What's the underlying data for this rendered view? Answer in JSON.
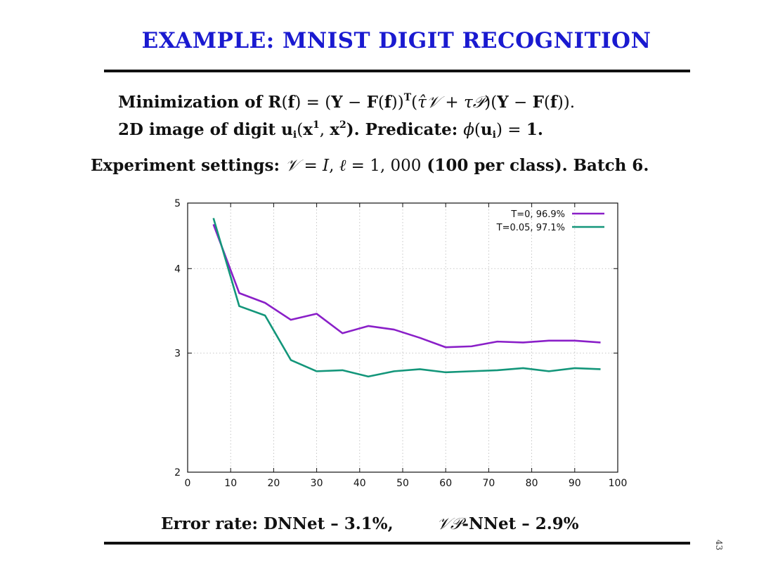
{
  "slide": {
    "title": "EXAMPLE: MNIST DIGIT RECOGNITION",
    "page_number": "43"
  },
  "text": {
    "line1_a": "Minimization of ",
    "line1_b": "R",
    "line1_c": "(",
    "line1_d": "f",
    "line1_e": ") = (",
    "line1_f": "Y",
    "line1_g": " − ",
    "line1_h": "F",
    "line1_i": "(",
    "line1_j": "f",
    "line1_k": "))",
    "line1_sup": "T",
    "line1_l": "(",
    "line1_m": "τ̂",
    "line1_n": "𝒱",
    "line1_o": " + ",
    "line1_p": "τ",
    "line1_q": "𝒫",
    "line1_r": ")(",
    "line1_s": "Y",
    "line1_t": " − ",
    "line1_u": "F",
    "line1_v": "(",
    "line1_w": "f",
    "line1_x": ")).",
    "line2_a": "2D image of digit ",
    "line2_b": "u",
    "line2_sub": "i",
    "line2_c": "(",
    "line2_d": "x",
    "line2_sup1": "1",
    "line2_e": ", ",
    "line2_f": "x",
    "line2_sup2": "2",
    "line2_g": ").  Predicate: ",
    "line2_h": "ϕ",
    "line2_i": "(",
    "line2_j": "u",
    "line2_sub2": "i",
    "line2_k": ") = ",
    "line2_l": "1.",
    "line3_a": "Experiment settings: ",
    "line3_b": "𝒱",
    "line3_c": " = ",
    "line3_d": "I",
    "line3_e": ", ",
    "line3_f": "ℓ",
    "line3_g": " = 1, 000",
    "line3_h": " (100 per class).  Batch 6.",
    "bottom_a": "Error rate:  DNNet – 3.1%,",
    "bottom_b": "𝒱𝒫",
    "bottom_c": "-NNet – 2.9%"
  },
  "chart_data": {
    "type": "line",
    "xlim": [
      0,
      100
    ],
    "ylim": [
      2,
      5
    ],
    "yscale": "log",
    "x_ticks": [
      0,
      10,
      20,
      30,
      40,
      50,
      60,
      70,
      80,
      90,
      100
    ],
    "y_ticks": [
      2,
      3,
      4,
      5
    ],
    "grid": true,
    "legend_position": "top-right",
    "series": [
      {
        "name": "T=0, 96.9%",
        "color": "#8a1fc8",
        "x": [
          6,
          12,
          18,
          24,
          30,
          36,
          42,
          48,
          54,
          60,
          66,
          72,
          78,
          84,
          90,
          96
        ],
        "y": [
          4.65,
          3.68,
          3.56,
          3.36,
          3.43,
          3.21,
          3.29,
          3.25,
          3.16,
          3.06,
          3.07,
          3.12,
          3.11,
          3.13,
          3.13,
          3.11
        ]
      },
      {
        "name": "T=0.05, 97.1%",
        "color": "#13967a",
        "x": [
          6,
          12,
          18,
          24,
          30,
          36,
          42,
          48,
          54,
          60,
          66,
          72,
          78,
          84,
          90,
          96
        ],
        "y": [
          4.75,
          3.52,
          3.41,
          2.93,
          2.82,
          2.83,
          2.77,
          2.82,
          2.84,
          2.81,
          2.82,
          2.83,
          2.85,
          2.82,
          2.85,
          2.84
        ]
      }
    ]
  }
}
